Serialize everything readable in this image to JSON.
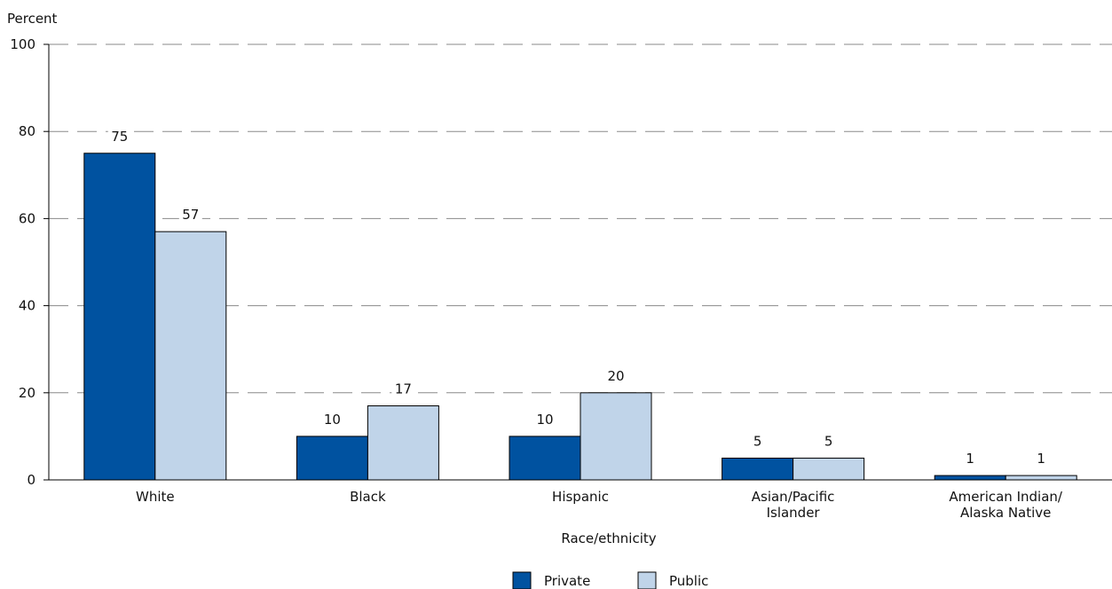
{
  "chart_data": {
    "type": "bar",
    "ylabel": "Percent",
    "xlabel": "Race/ethnicity",
    "ylim": [
      0,
      100
    ],
    "yticks": [
      "0",
      "20",
      "40",
      "60",
      "80",
      "100"
    ],
    "grid": "horizontal dashed",
    "legend_position": "bottom-center",
    "categories": [
      [
        "White"
      ],
      [
        "Black"
      ],
      [
        "Hispanic"
      ],
      [
        "Asian/Pacific",
        "Islander"
      ],
      [
        "American Indian/",
        "Alaska Native"
      ]
    ],
    "series": [
      {
        "name": "Private",
        "color": "#0052a0",
        "values": [
          75,
          10,
          10,
          5,
          1
        ],
        "labels": [
          "75",
          "10",
          "10",
          "5",
          "1"
        ]
      },
      {
        "name": "Public",
        "color": "#c0d4e9",
        "values": [
          57,
          17,
          20,
          5,
          1
        ],
        "labels": [
          "57",
          "17",
          "20",
          "5",
          "1"
        ]
      }
    ]
  }
}
